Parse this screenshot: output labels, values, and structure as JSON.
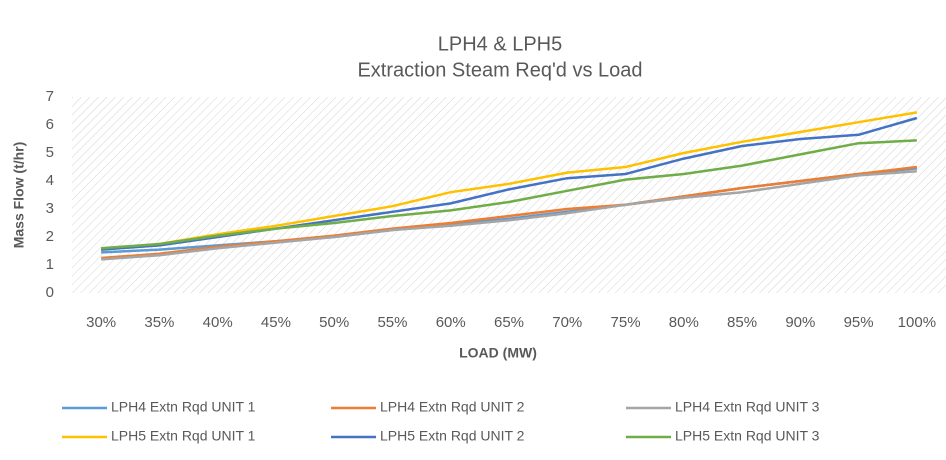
{
  "chart_data": {
    "type": "line",
    "title": "LPH4 & LPH5",
    "subtitle": "Extraction Steam Req'd vs Load",
    "x_label": "LOAD (MW)",
    "y_label": "Mass Flow (t/hr)",
    "categories": [
      "30%",
      "35%",
      "40%",
      "45%",
      "50%",
      "55%",
      "60%",
      "65%",
      "70%",
      "75%",
      "80%",
      "85%",
      "90%",
      "95%",
      "100%"
    ],
    "ylim": [
      0,
      7
    ],
    "yticks": [
      0,
      1,
      2,
      3,
      4,
      5,
      6,
      7
    ],
    "grid": false,
    "legend": "bottom",
    "series": [
      {
        "name": "LPH4 Extn Rqd UNIT 1",
        "color": "#5b9bd5",
        "values": [
          1.45,
          1.55,
          1.7,
          1.85,
          2.0,
          2.25,
          2.45,
          2.65,
          2.9,
          3.15,
          3.45,
          3.75,
          4.0,
          4.25,
          4.45
        ]
      },
      {
        "name": "LPH4 Extn Rqd UNIT 2",
        "color": "#ed7d31",
        "values": [
          1.25,
          1.4,
          1.65,
          1.85,
          2.05,
          2.3,
          2.5,
          2.75,
          3.0,
          3.15,
          3.45,
          3.75,
          4.0,
          4.25,
          4.5
        ]
      },
      {
        "name": "LPH4 Extn Rqd UNIT 3",
        "color": "#a5a5a5",
        "values": [
          1.2,
          1.35,
          1.6,
          1.8,
          2.0,
          2.25,
          2.4,
          2.6,
          2.85,
          3.15,
          3.4,
          3.6,
          3.9,
          4.2,
          4.35
        ]
      },
      {
        "name": "LPH5 Extn Rqd UNIT 1",
        "color": "#ffc000",
        "values": [
          1.55,
          1.75,
          2.1,
          2.4,
          2.75,
          3.1,
          3.6,
          3.9,
          4.3,
          4.5,
          5.0,
          5.4,
          5.75,
          6.1,
          6.45
        ]
      },
      {
        "name": "LPH5 Extn Rqd UNIT 2",
        "color": "#4472c4",
        "values": [
          1.55,
          1.7,
          2.0,
          2.3,
          2.6,
          2.9,
          3.2,
          3.7,
          4.1,
          4.25,
          4.8,
          5.25,
          5.5,
          5.65,
          6.25
        ]
      },
      {
        "name": "LPH5 Extn Rqd UNIT 3",
        "color": "#70ad47",
        "values": [
          1.6,
          1.75,
          2.05,
          2.3,
          2.5,
          2.75,
          2.95,
          3.25,
          3.65,
          4.05,
          4.25,
          4.55,
          4.95,
          5.35,
          5.45
        ]
      }
    ]
  }
}
